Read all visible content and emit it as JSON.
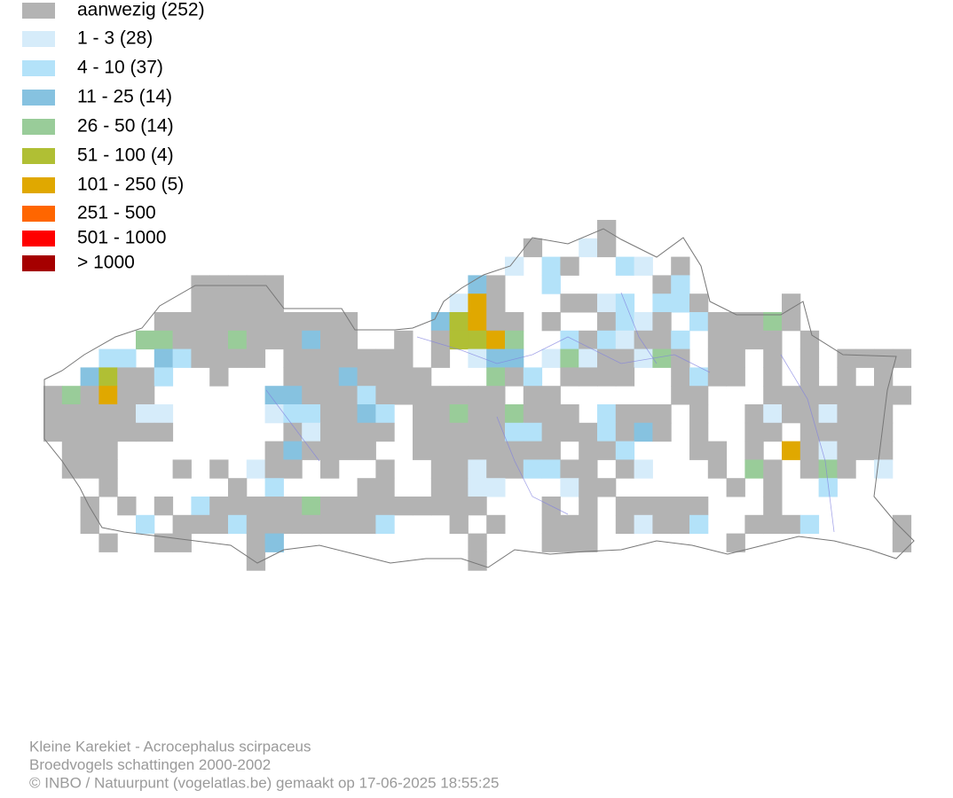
{
  "legend": [
    {
      "label": "aanwezig (252)",
      "color": "#b3b3b3"
    },
    {
      "label": "1 - 3 (28)",
      "color": "#d6ecfa"
    },
    {
      "label": "4 - 10 (37)",
      "color": "#b3e2f9"
    },
    {
      "label": "11 - 25 (14)",
      "color": "#86c2e0"
    },
    {
      "label": "26 - 50 (14)",
      "color": "#99cc99"
    },
    {
      "label": "51 - 100 (4)",
      "color": "#b0bf34"
    },
    {
      "label": "101 - 250 (5)",
      "color": "#e0a800"
    },
    {
      "label": "251 - 500",
      "color": "#ff6600"
    },
    {
      "label": "501 - 1000",
      "color": "#ff0000"
    },
    {
      "label": "> 1000",
      "color": "#a50000"
    }
  ],
  "footer": [
    "Kleine Karekiet - Acrocephalus scirpaceus",
    "Broedvogels schattingen 2000-2002",
    "© INBO / Natuurpunt (vogelatlas.be) gemaakt op 17-06-2025 18:55:25"
  ]
}
